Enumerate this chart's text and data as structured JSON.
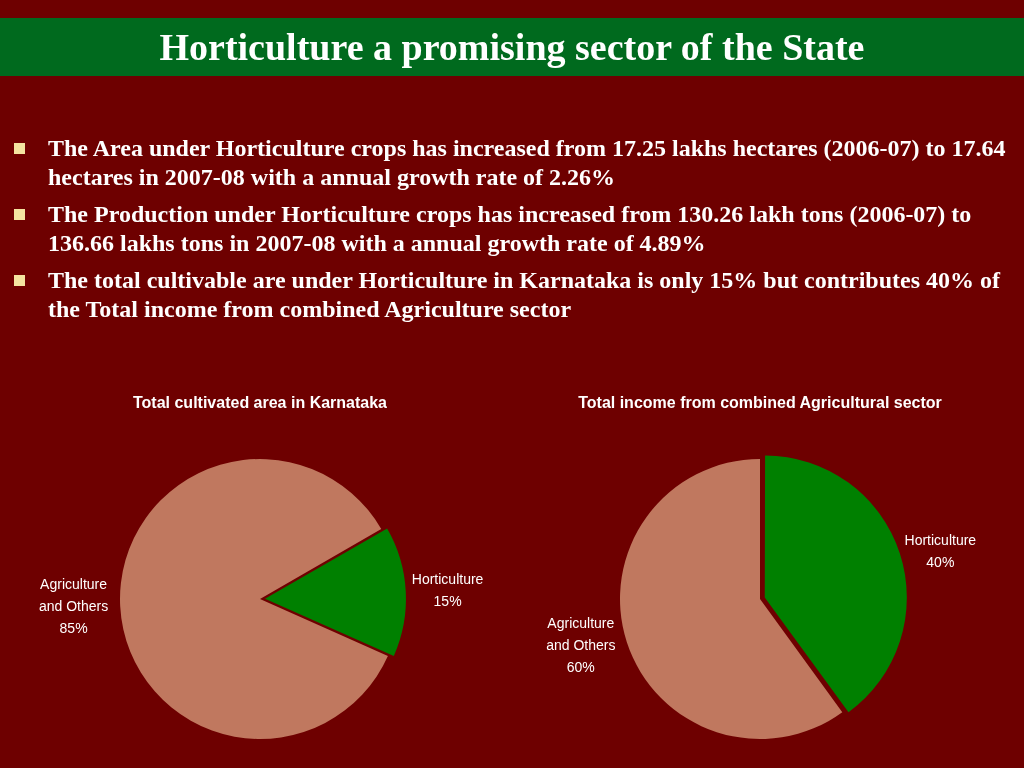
{
  "chart_data": [
    {
      "type": "other",
      "title": "Horticulture a promising sector of the State",
      "annotations": [
        "The Area under Horticulture crops has increased from 17.25 lakhs hectares (2006-07) to 17.64 hectares in 2007-08 with a annual growth rate of 2.26%",
        " The Production under Horticulture crops has increased from 130.26 lakh tons (2006-07) to 136.66 lakhs tons in 2007-08 with a annual growth rate of 4.89%",
        " The total cultivable are under Horticulture in Karnataka is only 15% but contributes 40% of the Total income from combined Agriculture sector"
      ]
    },
    {
      "type": "pie",
      "title": "Total cultivated area in Karnataka",
      "categories": [
        "Agriculture and Others",
        "Horticulture"
      ],
      "values": [
        85,
        15
      ],
      "colors": [
        "#c0785f",
        "#008000"
      ],
      "value_labels": [
        "85%",
        "15%"
      ],
      "legend": false
    },
    {
      "type": "pie",
      "title": "Total income from combined Agricultural sector",
      "categories": [
        "Agriculture and Others",
        "Horticulture"
      ],
      "values": [
        60,
        40
      ],
      "colors": [
        "#c0785f",
        "#008000"
      ],
      "value_labels": [
        "60%",
        "40%"
      ],
      "legend": false
    }
  ]
}
